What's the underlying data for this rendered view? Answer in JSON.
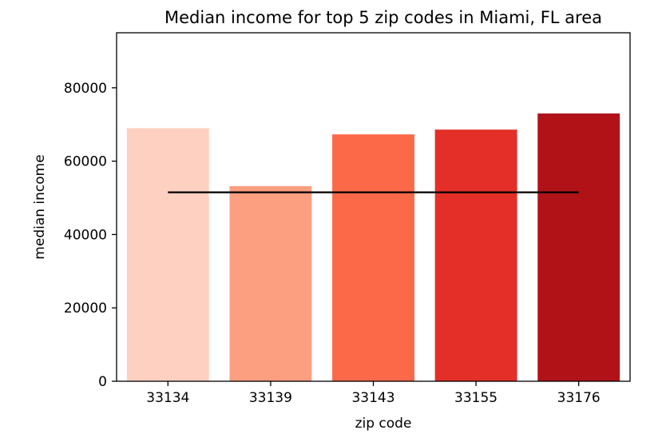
{
  "chart_data": {
    "type": "bar",
    "title": "Median income for top 5 zip codes in Miami, FL area",
    "xlabel": "zip code",
    "ylabel": "median income",
    "categories": [
      "33134",
      "33139",
      "33143",
      "33155",
      "33176"
    ],
    "values": [
      69000,
      53200,
      67300,
      68600,
      73000
    ],
    "bar_colors": [
      "#fdd0c2",
      "#fc9e80",
      "#fb6949",
      "#e32f27",
      "#b11218"
    ],
    "reference_line": {
      "value": 51500,
      "color": "#000000"
    },
    "ylim": [
      0,
      95000
    ],
    "yticks": [
      0,
      20000,
      40000,
      60000,
      80000
    ],
    "grid": false,
    "legend": "none"
  }
}
